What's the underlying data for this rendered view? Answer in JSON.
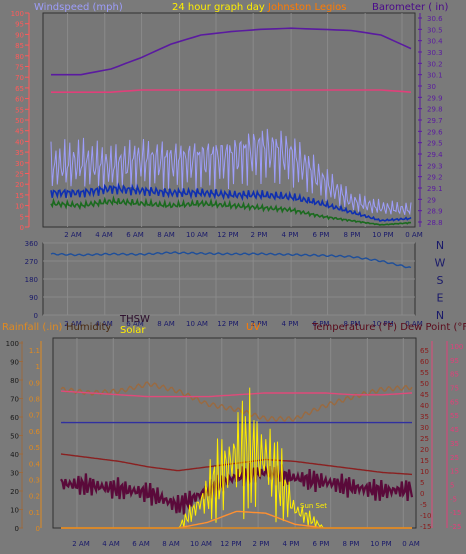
{
  "header": {
    "left_label": "Windspeed (mph)",
    "center_label": "24 hour graph day",
    "center_label2": "Johnston Legios",
    "right_label": "Barometer ( in)"
  },
  "panel1": {
    "left_ticks": [
      "0",
      "5",
      "10",
      "15",
      "20",
      "25",
      "30",
      "35",
      "40",
      "45",
      "50",
      "55",
      "60",
      "65",
      "70",
      "75",
      "80",
      "85",
      "90",
      "95",
      "100"
    ],
    "right_ticks": [
      "28.8",
      "28.9",
      "29",
      "29.1",
      "29.2",
      "29.3",
      "29.4",
      "29.5",
      "29.6",
      "29.7",
      "29.8",
      "29.9",
      "30",
      "30.1",
      "30.2",
      "30.3",
      "30.4",
      "30.5",
      "30.6"
    ],
    "x_ticks": [
      "2 AM",
      "4 AM",
      "6 AM",
      "8 AM",
      "10 AM",
      "12 PM",
      "2 PM",
      "4 PM",
      "6 PM",
      "8 PM",
      "10 PM",
      "0 AM"
    ]
  },
  "panel2": {
    "left_ticks": [
      "0",
      "90",
      "180",
      "270",
      "360"
    ],
    "right_labels": [
      "N",
      "W",
      "S",
      "E",
      "N"
    ],
    "x_ticks": [
      "2 AM",
      "4 AM",
      "6 AM",
      "8 AM",
      "10 AM",
      "12 PM",
      "2 PM",
      "4 PM",
      "6 PM",
      "8 PM",
      "10 PM",
      "0 AM"
    ]
  },
  "panel3": {
    "rain_label": "Rainfall (.in)",
    "humidity_label": "Humidity",
    "thsw_label": "THSW",
    "solar_label": "Solar",
    "uv_label": "UV",
    "temp_label": "Temperature (°F) Dew Point (°F)",
    "humidity_ticks": [
      "0",
      "10",
      "20",
      "30",
      "40",
      "50",
      "60",
      "70",
      "80",
      "90",
      "100"
    ],
    "rain_ticks": [
      "0",
      "0.1",
      "0.2",
      "0.3",
      "0.4",
      "0.5",
      "0.6",
      "0.7",
      "0.8",
      "0.9",
      "1",
      "1.1"
    ],
    "uv_ticks": [
      "0",
      "1",
      "2",
      "3",
      "4",
      "5",
      "6",
      "7",
      "8",
      "9",
      "10",
      "11"
    ],
    "temp_ticks": [
      "-15",
      "-10",
      "-5",
      "0",
      "5",
      "10",
      "15",
      "20",
      "25",
      "30",
      "35",
      "40",
      "45",
      "50",
      "55",
      "60",
      "65"
    ],
    "thsw_ticks": [
      "-25",
      "-15",
      "-5",
      "5",
      "15",
      "25",
      "35",
      "45",
      "55",
      "65",
      "75",
      "85",
      "95",
      "100"
    ],
    "sun_label": "Sun Set",
    "x_ticks": [
      "2 AM",
      "4 AM",
      "6 AM",
      "8 AM",
      "10 AM",
      "12 PM",
      "2 PM",
      "4 PM",
      "6 PM",
      "8 PM",
      "10 PM",
      "0 AM"
    ]
  },
  "chart_data": [
    {
      "type": "line",
      "title": "24 hour graph day",
      "ylabel": "Windspeed (mph)",
      "y2label": "Barometer ( in)",
      "ylim": [
        0,
        100
      ],
      "y2lim": [
        28.8,
        30.6
      ],
      "x": [
        0,
        2,
        4,
        6,
        8,
        10,
        12,
        14,
        16,
        18,
        20,
        22,
        24
      ],
      "series": [
        {
          "name": "Barometer ( in)",
          "color": "#5a1aa0",
          "axis": "right",
          "values": [
            30.1,
            30.1,
            30.15,
            30.25,
            30.37,
            30.45,
            30.48,
            30.5,
            30.51,
            30.5,
            30.49,
            30.45,
            30.33
          ]
        },
        {
          "name": "Temperature",
          "color": "#e0407a",
          "values": [
            63,
            63,
            63,
            64,
            64,
            64,
            64,
            64,
            64,
            64,
            64,
            64,
            63
          ]
        },
        {
          "color": "#9d9dfa",
          "values": [
            28,
            30,
            28,
            31,
            30,
            31,
            32,
            36,
            33,
            22,
            12,
            9,
            8
          ]
        },
        {
          "color": "#0f2fb0",
          "values": [
            16,
            16,
            18,
            17,
            16,
            16,
            15,
            15,
            14,
            11,
            7,
            3,
            4
          ]
        },
        {
          "color": "#1b6a1f",
          "values": [
            11,
            10,
            12,
            11,
            10,
            11,
            10,
            9,
            8,
            5,
            3,
            1,
            2
          ]
        }
      ]
    },
    {
      "type": "line",
      "ylim": [
        0,
        360
      ],
      "x": [
        0,
        2,
        4,
        6,
        8,
        10,
        12,
        14,
        16,
        18,
        20,
        22,
        24
      ],
      "series": [
        {
          "color": "#1f4f9a",
          "values": [
            305,
            300,
            305,
            303,
            312,
            308,
            305,
            306,
            302,
            298,
            292,
            270,
            235
          ]
        }
      ]
    },
    {
      "type": "line",
      "ylim": [
        0,
        100
      ],
      "x": [
        0,
        2,
        4,
        6,
        8,
        10,
        12,
        14,
        16,
        18,
        20,
        22,
        24
      ],
      "series": [
        {
          "name": "Humidity",
          "color": "#9a6a40",
          "values": [
            75,
            73,
            74,
            78,
            74,
            67,
            64,
            59,
            59,
            66,
            71,
            75,
            76
          ]
        },
        {
          "color": "#e04a7a",
          "values": [
            74,
            73,
            72,
            71,
            71,
            71,
            72,
            73,
            73,
            73,
            72,
            72,
            73
          ]
        },
        {
          "color": "#3030a0",
          "values": [
            57,
            57,
            57,
            57,
            57,
            57,
            57,
            57,
            57,
            57,
            57,
            57,
            57
          ]
        },
        {
          "color": "#8a2020",
          "values": [
            40,
            38,
            36,
            33,
            31,
            33,
            35,
            37,
            36,
            34,
            32,
            30,
            29
          ]
        },
        {
          "name": "THSW",
          "color": "#5a0a3a",
          "values": [
            24,
            23,
            21,
            19,
            12,
            20,
            28,
            30,
            27,
            25,
            22,
            20,
            21
          ]
        },
        {
          "name": "Solar",
          "color": "#ffee00",
          "values": [
            0,
            0,
            0,
            0,
            0,
            18,
            40,
            38,
            10,
            0,
            0,
            0,
            0
          ]
        },
        {
          "name": "UV",
          "color": "#ff9030",
          "values": [
            0,
            0,
            0,
            0,
            0,
            3,
            9,
            8,
            2,
            0,
            0,
            0,
            0
          ]
        },
        {
          "name": "Rainfall (.in)",
          "color": "#e08a20",
          "values": [
            0,
            0,
            0,
            0,
            0,
            0,
            0,
            0,
            0,
            0,
            0,
            0,
            0
          ]
        }
      ]
    }
  ]
}
